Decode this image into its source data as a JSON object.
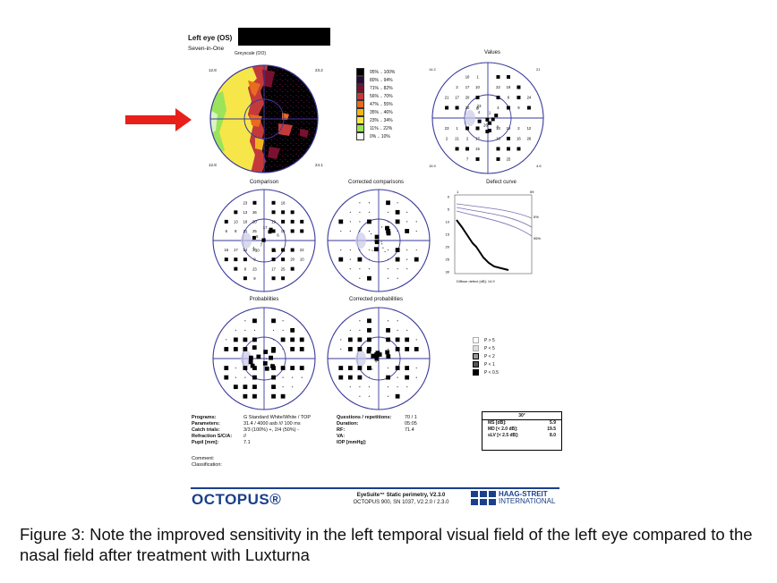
{
  "header": {
    "title": "Left eye (OS)",
    "subtitle": "Seven-in-One",
    "greyscale_title": "Greyscale (OO)"
  },
  "greyscale_legend": [
    "95% .. 100%",
    "80% .. 94%",
    "71% .. 82%",
    "56% .. 70%",
    "47% .. 55%",
    "35% .. 46%",
    "23% .. 34%",
    "11% .. 22%",
    "0% .. 10%"
  ],
  "greyscale_colors": [
    "#000000",
    "#2a0a3a",
    "#7a1030",
    "#c43a3a",
    "#e86b1e",
    "#f2b41c",
    "#f6e64a",
    "#9be35a",
    "#ffffff"
  ],
  "greyscale_corner_labels": {
    "tl": "12.8",
    "tr": "23.2",
    "bl": "12.8",
    "br": "24.1"
  },
  "panel_titles": {
    "values": "Values",
    "comparison": "Comparison",
    "corrected_comparisons": "Corrected comparisons",
    "defect_curve": "Defect curve",
    "probabilities": "Probabilities",
    "corrected_probabilities": "Corrected probabilities"
  },
  "values_corner_labels": {
    "tl": "14.2",
    "tr": "21",
    "bl": "15.9",
    "br": "4.6"
  },
  "defect_curve": {
    "y_ticks": [
      "0",
      "5",
      "10",
      "15",
      "20",
      "25",
      "30"
    ],
    "right_labels": [
      "5%",
      "95%"
    ],
    "top_labels": [
      "1",
      "59"
    ],
    "footer": "Diffuse defect [dB]: 14.9"
  },
  "prob_legend": [
    "P > 5",
    "P < 5",
    "P < 2",
    "P < 1",
    "P < 0.5"
  ],
  "info_left": {
    "labels": [
      "Programs:",
      "Parameters:",
      "Catch trials:",
      "Refraction S/C/A:",
      "Pupil [mm]:"
    ],
    "values": [
      "G Standard  White/White / TOP",
      "31.4 / 4000 asb /// 100 ms",
      "3/3 (100%) +, 2/4 (50%) -",
      "//",
      "7.1"
    ]
  },
  "info_mid": {
    "labels": [
      "Questions / repetitions:",
      "Duration:",
      "RF:",
      "VA:",
      "IOP [mmHg]:"
    ],
    "values": [
      "70 / 1",
      "05:05",
      "71.4",
      "",
      ""
    ]
  },
  "comment": [
    "Comment:",
    "Classification:"
  ],
  "ms_box": {
    "header": "30°",
    "rows": [
      [
        "MS [dB]:",
        "5.9"
      ],
      [
        "MD [< 2.0 dB]:",
        "19.5"
      ],
      [
        "sLV [< 2.5 dB]:",
        "8.0"
      ]
    ]
  },
  "footer": {
    "brand": "OCTOPUS®",
    "software_line1": "EyeSuite™ Static perimetry, V2.3.0",
    "software_line2": "OCTOPUS 900, SN 1037, V2.2.0 / 2.3.0",
    "company_line1": "HAAG-STREIT",
    "company_line2": "INTERNATIONAL"
  },
  "caption": "Figure 3:  Note the improved sensitivity in the left temporal visual field of the left eye compared to the nasal field after treatment with Luxturna",
  "accent_color": "#e8201c",
  "plot_color": "#3a3a9a"
}
